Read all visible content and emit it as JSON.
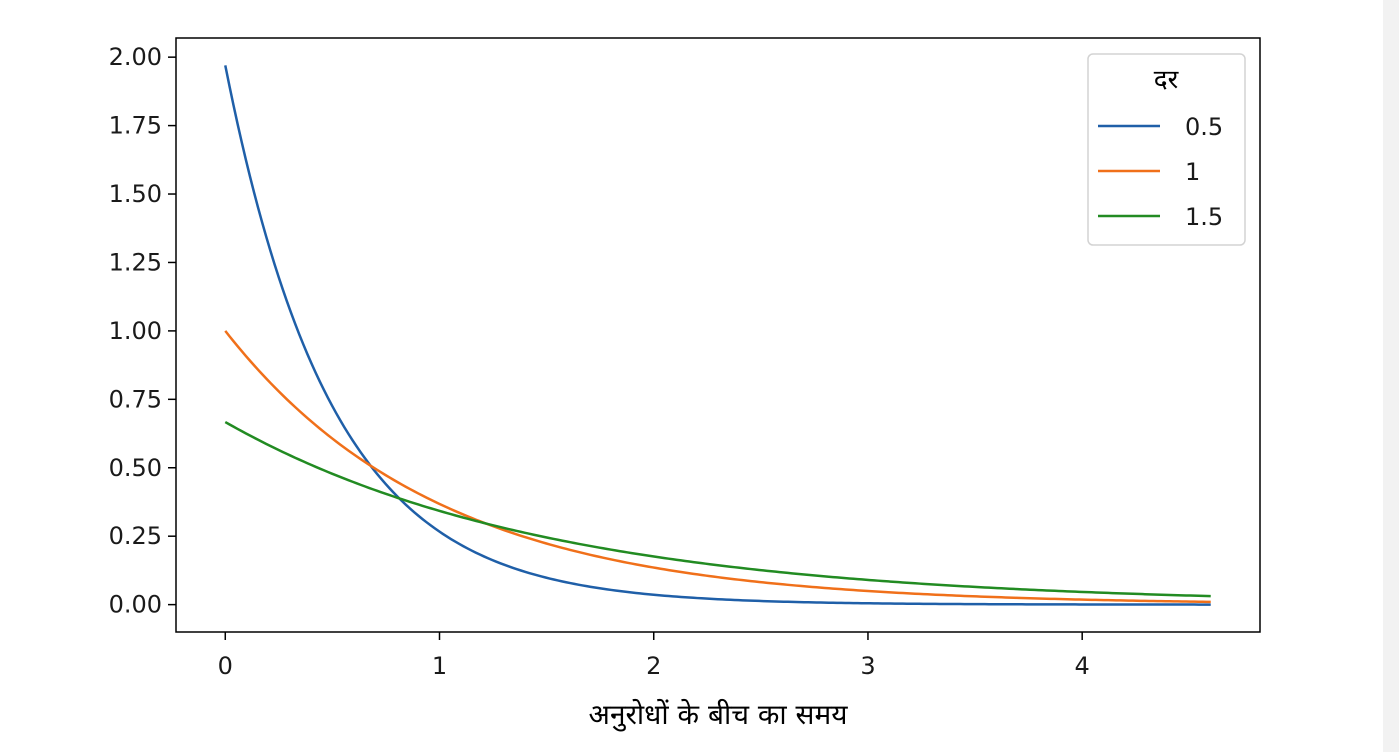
{
  "chart_data": {
    "type": "line",
    "title": "",
    "xlabel": "अनुरोधों के बीच का समय",
    "ylabel": "",
    "xlim": [
      -0.23,
      4.83
    ],
    "ylim": [
      -0.1,
      2.07
    ],
    "x_range": [
      0,
      4.6
    ],
    "xticks": [
      0,
      1,
      2,
      3,
      4
    ],
    "xtick_labels": [
      "0",
      "1",
      "2",
      "3",
      "4"
    ],
    "yticks": [
      0,
      0.25,
      0.5,
      0.75,
      1.0,
      1.25,
      1.5,
      1.75,
      2.0
    ],
    "ytick_labels": [
      "0.00",
      "0.25",
      "0.50",
      "0.75",
      "1.00",
      "1.25",
      "1.50",
      "1.75",
      "2.00"
    ],
    "grid": false,
    "legend": {
      "title": "दर",
      "position": "top-right"
    },
    "series": [
      {
        "name": "0.5",
        "color": "#1f5fa8",
        "y_at_x0": 1.97,
        "decay_rate": 2.0
      },
      {
        "name": "1",
        "color": "#f0701a",
        "y_at_x0": 1.0,
        "decay_rate": 1.0
      },
      {
        "name": "1.5",
        "color": "#228b22",
        "y_at_x0": 0.667,
        "decay_rate": 0.6667
      }
    ]
  }
}
